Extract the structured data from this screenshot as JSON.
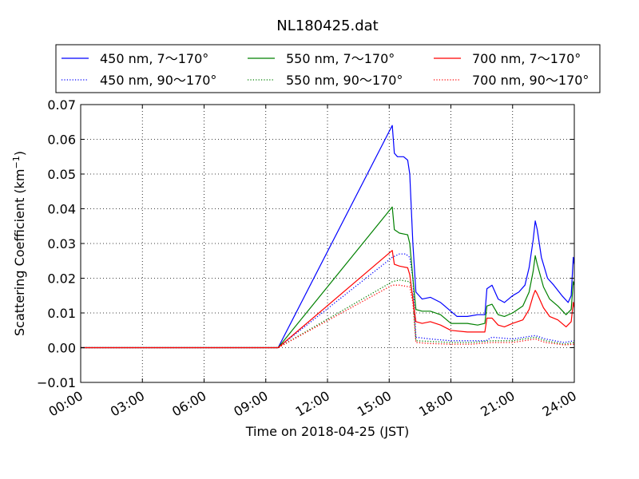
{
  "chart_data": {
    "type": "line",
    "title": "NL180425.dat",
    "xlabel": "Time on 2018-04-25 (JST)",
    "ylabel_main": "Scattering Coefficient (km",
    "ylabel_sup": "−1",
    "ylabel_close": ")",
    "xlim": [
      0,
      24
    ],
    "ylim": [
      -0.01,
      0.07
    ],
    "x_ticks": [
      0,
      3,
      6,
      9,
      12,
      15,
      18,
      21,
      24
    ],
    "x_tick_labels": [
      "00:00",
      "03:00",
      "06:00",
      "09:00",
      "12:00",
      "15:00",
      "18:00",
      "21:00",
      "24:00"
    ],
    "y_ticks": [
      -0.01,
      0.0,
      0.01,
      0.02,
      0.03,
      0.04,
      0.05,
      0.06,
      0.07
    ],
    "y_tick_labels": [
      "−0.01",
      "0.00",
      "0.01",
      "0.02",
      "0.03",
      "0.04",
      "0.05",
      "0.06",
      "0.07"
    ],
    "grid": true,
    "legend_position": "top",
    "series": [
      {
        "name": "450 nm, 7～170°",
        "color": "#0000ff",
        "dash": "solid",
        "points": [
          [
            0,
            0.0
          ],
          [
            9.6,
            0.0
          ],
          [
            15.15,
            0.064
          ],
          [
            15.25,
            0.056
          ],
          [
            15.4,
            0.055
          ],
          [
            15.7,
            0.055
          ],
          [
            15.9,
            0.054
          ],
          [
            16.0,
            0.05
          ],
          [
            16.15,
            0.03
          ],
          [
            16.3,
            0.016
          ],
          [
            16.6,
            0.014
          ],
          [
            17.0,
            0.0145
          ],
          [
            17.5,
            0.013
          ],
          [
            17.9,
            0.011
          ],
          [
            18.3,
            0.009
          ],
          [
            18.8,
            0.009
          ],
          [
            19.3,
            0.0095
          ],
          [
            19.65,
            0.0095
          ],
          [
            19.75,
            0.017
          ],
          [
            20.0,
            0.018
          ],
          [
            20.3,
            0.014
          ],
          [
            20.6,
            0.013
          ],
          [
            21.0,
            0.015
          ],
          [
            21.3,
            0.016
          ],
          [
            21.6,
            0.018
          ],
          [
            21.8,
            0.023
          ],
          [
            22.0,
            0.031
          ],
          [
            22.1,
            0.0365
          ],
          [
            22.2,
            0.034
          ],
          [
            22.4,
            0.026
          ],
          [
            22.7,
            0.02
          ],
          [
            23.0,
            0.018
          ],
          [
            23.4,
            0.015
          ],
          [
            23.7,
            0.013
          ],
          [
            23.85,
            0.015
          ],
          [
            23.95,
            0.026
          ],
          [
            24.0,
            0.024
          ]
        ]
      },
      {
        "name": "450 nm, 90～170°",
        "color": "#0000ff",
        "dash": "dotted",
        "points": [
          [
            0,
            0.0
          ],
          [
            9.6,
            0.0
          ],
          [
            15.15,
            0.026
          ],
          [
            15.5,
            0.027
          ],
          [
            15.8,
            0.027
          ],
          [
            16.0,
            0.026
          ],
          [
            16.15,
            0.02
          ],
          [
            16.3,
            0.003
          ],
          [
            17.0,
            0.0025
          ],
          [
            18.0,
            0.002
          ],
          [
            19.0,
            0.002
          ],
          [
            19.7,
            0.002
          ],
          [
            20.0,
            0.003
          ],
          [
            21.0,
            0.0025
          ],
          [
            22.1,
            0.0035
          ],
          [
            22.6,
            0.0025
          ],
          [
            23.5,
            0.0015
          ],
          [
            24.0,
            0.002
          ]
        ]
      },
      {
        "name": "550 nm, 7～170°",
        "color": "#008000",
        "dash": "solid",
        "points": [
          [
            0,
            0.0
          ],
          [
            9.6,
            0.0
          ],
          [
            15.15,
            0.0405
          ],
          [
            15.25,
            0.034
          ],
          [
            15.5,
            0.033
          ],
          [
            15.9,
            0.0325
          ],
          [
            16.0,
            0.03
          ],
          [
            16.15,
            0.02
          ],
          [
            16.3,
            0.011
          ],
          [
            16.6,
            0.0105
          ],
          [
            17.0,
            0.0105
          ],
          [
            17.5,
            0.0095
          ],
          [
            18.0,
            0.007
          ],
          [
            18.8,
            0.007
          ],
          [
            19.3,
            0.0065
          ],
          [
            19.65,
            0.007
          ],
          [
            19.75,
            0.012
          ],
          [
            20.0,
            0.0125
          ],
          [
            20.3,
            0.0095
          ],
          [
            20.6,
            0.009
          ],
          [
            21.0,
            0.01
          ],
          [
            21.5,
            0.012
          ],
          [
            21.8,
            0.016
          ],
          [
            22.0,
            0.022
          ],
          [
            22.1,
            0.0265
          ],
          [
            22.2,
            0.024
          ],
          [
            22.5,
            0.0175
          ],
          [
            22.8,
            0.014
          ],
          [
            23.2,
            0.012
          ],
          [
            23.6,
            0.0095
          ],
          [
            23.85,
            0.011
          ],
          [
            23.95,
            0.019
          ],
          [
            24.0,
            0.018
          ]
        ]
      },
      {
        "name": "550 nm, 90～170°",
        "color": "#008000",
        "dash": "dotted",
        "points": [
          [
            0,
            0.0
          ],
          [
            9.6,
            0.0
          ],
          [
            15.15,
            0.019
          ],
          [
            15.5,
            0.0195
          ],
          [
            16.0,
            0.019
          ],
          [
            16.15,
            0.015
          ],
          [
            16.3,
            0.002
          ],
          [
            17.0,
            0.0018
          ],
          [
            18.0,
            0.0015
          ],
          [
            19.0,
            0.0015
          ],
          [
            20.0,
            0.002
          ],
          [
            21.0,
            0.002
          ],
          [
            22.1,
            0.003
          ],
          [
            22.6,
            0.002
          ],
          [
            23.5,
            0.001
          ],
          [
            24.0,
            0.0015
          ]
        ]
      },
      {
        "name": "700 nm, 7～170°",
        "color": "#ff0000",
        "dash": "solid",
        "points": [
          [
            0,
            0.0
          ],
          [
            9.6,
            0.0
          ],
          [
            15.15,
            0.028
          ],
          [
            15.25,
            0.024
          ],
          [
            15.5,
            0.0235
          ],
          [
            15.9,
            0.023
          ],
          [
            16.0,
            0.021
          ],
          [
            16.15,
            0.014
          ],
          [
            16.3,
            0.0075
          ],
          [
            16.6,
            0.007
          ],
          [
            17.0,
            0.0075
          ],
          [
            17.5,
            0.0065
          ],
          [
            18.0,
            0.005
          ],
          [
            18.8,
            0.0045
          ],
          [
            19.3,
            0.0045
          ],
          [
            19.65,
            0.0045
          ],
          [
            19.75,
            0.0085
          ],
          [
            20.0,
            0.0085
          ],
          [
            20.3,
            0.0065
          ],
          [
            20.6,
            0.006
          ],
          [
            21.0,
            0.007
          ],
          [
            21.5,
            0.008
          ],
          [
            21.8,
            0.011
          ],
          [
            22.0,
            0.015
          ],
          [
            22.1,
            0.0165
          ],
          [
            22.2,
            0.0155
          ],
          [
            22.5,
            0.0115
          ],
          [
            22.8,
            0.009
          ],
          [
            23.2,
            0.008
          ],
          [
            23.6,
            0.006
          ],
          [
            23.85,
            0.0075
          ],
          [
            23.95,
            0.013
          ],
          [
            24.0,
            0.0115
          ]
        ]
      },
      {
        "name": "700 nm, 90～170°",
        "color": "#ff0000",
        "dash": "dotted",
        "points": [
          [
            0,
            0.0
          ],
          [
            9.6,
            0.0
          ],
          [
            15.15,
            0.018
          ],
          [
            15.5,
            0.018
          ],
          [
            16.0,
            0.0175
          ],
          [
            16.15,
            0.013
          ],
          [
            16.3,
            0.0015
          ],
          [
            17.0,
            0.0012
          ],
          [
            18.0,
            0.001
          ],
          [
            19.0,
            0.001
          ],
          [
            20.0,
            0.0015
          ],
          [
            21.0,
            0.0015
          ],
          [
            22.1,
            0.0025
          ],
          [
            22.6,
            0.0015
          ],
          [
            23.5,
            0.0008
          ],
          [
            24.0,
            0.001
          ]
        ]
      }
    ]
  }
}
